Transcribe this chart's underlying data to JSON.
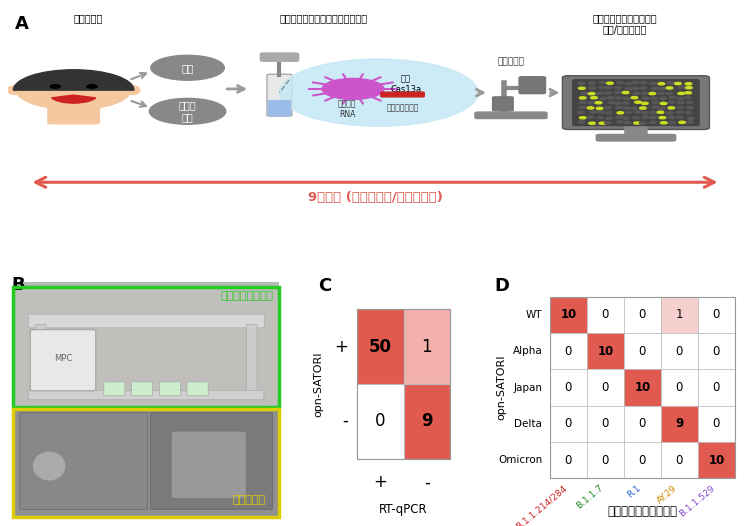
{
  "title_A": "A",
  "title_B": "B",
  "title_C": "C",
  "title_D": "D",
  "arrow_text": "9分以内 (全自動陽性/変異株判定)",
  "panel_A_labels": {
    "step1": "検体の採取",
    "step2": "自動ロボットによるサンプル調整",
    "step3": "ウイルスの自動個数定量\n陽性/変異株判定",
    "saliva": "唾液",
    "throat": "のどの\n粘膜",
    "rna": "ウイルス\nRNA",
    "reporter": "蛍光レポーター",
    "cas": "新種\nCas13a",
    "microscope_label": "自動顕微鏡"
  },
  "panel_B_labels": {
    "robot_label": "自動分注ロボット",
    "microscope_label": "蛍光顕微鏡"
  },
  "panel_C": {
    "matrix": [
      [
        50,
        1
      ],
      [
        0,
        9
      ]
    ],
    "row_labels": [
      "+",
      "-"
    ],
    "col_labels": [
      "+",
      "-"
    ],
    "ylabel": "opn-SATORI",
    "xlabel": "RT-qPCR",
    "color_high": "#e05a50",
    "color_low": "#f2b0ab",
    "color_zero": "#ffffff"
  },
  "panel_D": {
    "matrix": [
      [
        10,
        0,
        0,
        1,
        0
      ],
      [
        0,
        10,
        0,
        0,
        0
      ],
      [
        0,
        0,
        10,
        0,
        0
      ],
      [
        0,
        0,
        0,
        9,
        0
      ],
      [
        0,
        0,
        0,
        0,
        10
      ]
    ],
    "row_labels": [
      "WT",
      "Alpha",
      "Japan",
      "Delta",
      "Omicron"
    ],
    "col_labels": [
      "B.1.1.214/284",
      "B.1.1.7",
      "R.1",
      "AY.29",
      "B.1.1.529"
    ],
    "col_colors": [
      "#cc2222",
      "#228822",
      "#2266cc",
      "#cc8800",
      "#8844cc"
    ],
    "ylabel": "opn-SATORI",
    "xlabel": "全ゲノムシークエンス",
    "color_high": "#e05a50",
    "color_slight": "#f5d0ce",
    "color_zero": "#ffffff"
  },
  "bg_color": "#ffffff",
  "arrow_color": "#e05a50",
  "robot_label_color": "#22cc22",
  "microscope_label_color": "#ddcc00"
}
